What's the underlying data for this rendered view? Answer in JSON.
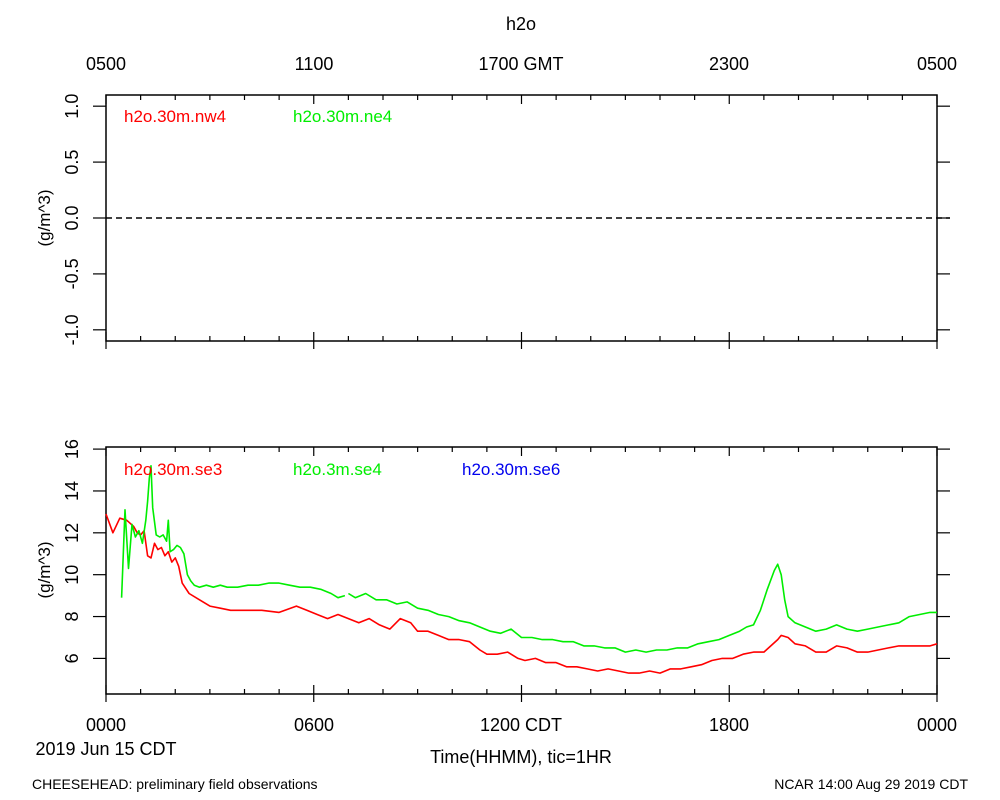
{
  "title": "h2o",
  "top_axis": {
    "ticks": [
      "0500",
      "1100",
      "1700 GMT",
      "2300",
      "0500"
    ]
  },
  "bottom_axis": {
    "ticks": [
      "0000",
      "0600",
      "1200 CDT",
      "1800",
      "0000"
    ],
    "date_label": "2019 Jun 15 CDT",
    "xlabel": "Time(HHMM), tic=1HR"
  },
  "footer": {
    "left": "CHEESEHEAD: preliminary field observations",
    "right": "NCAR 14:00 Aug 29 2019 CDT"
  },
  "colors": {
    "red": "#ff0000",
    "green": "#00ee00",
    "blue": "#0000ee"
  },
  "chart_data": [
    {
      "type": "line",
      "ylabel": "(g/m^3)",
      "xlim": [
        0,
        24
      ],
      "ylim": [
        -1.1,
        1.1
      ],
      "yticks": [
        "1.0",
        "0.5",
        "0.0",
        "-0.5",
        "-1.0"
      ],
      "ytick_values": [
        1.0,
        0.5,
        0.0,
        -0.5,
        -1.0
      ],
      "reference_line": 0,
      "series": [
        {
          "name": "h2o.30m.nw4",
          "color": "#ff0000",
          "points": []
        },
        {
          "name": "h2o.30m.ne4",
          "color": "#00ee00",
          "points": []
        }
      ]
    },
    {
      "type": "line",
      "ylabel": "(g/m^3)",
      "xlim": [
        0,
        24
      ],
      "ylim": [
        4.3,
        16.1
      ],
      "yticks": [
        "16",
        "14",
        "12",
        "10",
        "8",
        "6"
      ],
      "ytick_values": [
        16,
        14,
        12,
        10,
        8,
        6
      ],
      "series": [
        {
          "name": "h2o.30m.se3",
          "color": "#ff0000",
          "points": [
            [
              0.0,
              12.9
            ],
            [
              0.2,
              12.0
            ],
            [
              0.4,
              12.7
            ],
            [
              0.6,
              12.6
            ],
            [
              0.8,
              12.3
            ],
            [
              0.9,
              12.0
            ],
            [
              1.0,
              11.9
            ],
            [
              1.1,
              12.1
            ],
            [
              1.2,
              10.9
            ],
            [
              1.3,
              10.8
            ],
            [
              1.4,
              11.5
            ],
            [
              1.5,
              11.2
            ],
            [
              1.6,
              11.3
            ],
            [
              1.7,
              10.9
            ],
            [
              1.8,
              11.1
            ],
            [
              1.9,
              10.6
            ],
            [
              2.0,
              10.8
            ],
            [
              2.1,
              10.4
            ],
            [
              2.2,
              9.6
            ],
            [
              2.4,
              9.1
            ],
            [
              2.7,
              8.8
            ],
            [
              3.0,
              8.5
            ],
            [
              3.3,
              8.4
            ],
            [
              3.6,
              8.3
            ],
            [
              4.0,
              8.3
            ],
            [
              4.5,
              8.3
            ],
            [
              5.0,
              8.2
            ],
            [
              5.5,
              8.5
            ],
            [
              5.8,
              8.3
            ],
            [
              6.1,
              8.1
            ],
            [
              6.4,
              7.9
            ],
            [
              6.7,
              8.1
            ],
            [
              7.0,
              7.9
            ],
            [
              7.3,
              7.7
            ],
            [
              7.6,
              7.9
            ],
            [
              7.9,
              7.6
            ],
            [
              8.2,
              7.4
            ],
            [
              8.5,
              7.9
            ],
            [
              8.8,
              7.7
            ],
            [
              9.0,
              7.3
            ],
            [
              9.3,
              7.3
            ],
            [
              9.6,
              7.1
            ],
            [
              9.9,
              6.9
            ],
            [
              10.2,
              6.9
            ],
            [
              10.5,
              6.8
            ],
            [
              10.8,
              6.4
            ],
            [
              11.0,
              6.2
            ],
            [
              11.3,
              6.2
            ],
            [
              11.6,
              6.3
            ],
            [
              11.9,
              6.0
            ],
            [
              12.1,
              5.9
            ],
            [
              12.4,
              6.0
            ],
            [
              12.7,
              5.8
            ],
            [
              13.0,
              5.8
            ],
            [
              13.3,
              5.6
            ],
            [
              13.6,
              5.6
            ],
            [
              13.9,
              5.5
            ],
            [
              14.2,
              5.4
            ],
            [
              14.5,
              5.5
            ],
            [
              14.8,
              5.4
            ],
            [
              15.1,
              5.3
            ],
            [
              15.4,
              5.3
            ],
            [
              15.7,
              5.4
            ],
            [
              16.0,
              5.3
            ],
            [
              16.3,
              5.5
            ],
            [
              16.6,
              5.5
            ],
            [
              16.9,
              5.6
            ],
            [
              17.2,
              5.7
            ],
            [
              17.5,
              5.9
            ],
            [
              17.8,
              6.0
            ],
            [
              18.1,
              6.0
            ],
            [
              18.4,
              6.2
            ],
            [
              18.7,
              6.3
            ],
            [
              19.0,
              6.3
            ],
            [
              19.2,
              6.6
            ],
            [
              19.4,
              6.9
            ],
            [
              19.5,
              7.1
            ],
            [
              19.7,
              7.0
            ],
            [
              19.9,
              6.7
            ],
            [
              20.2,
              6.6
            ],
            [
              20.5,
              6.3
            ],
            [
              20.8,
              6.3
            ],
            [
              21.1,
              6.6
            ],
            [
              21.4,
              6.5
            ],
            [
              21.7,
              6.3
            ],
            [
              22.0,
              6.3
            ],
            [
              22.3,
              6.4
            ],
            [
              22.6,
              6.5
            ],
            [
              22.9,
              6.6
            ],
            [
              23.2,
              6.6
            ],
            [
              23.5,
              6.6
            ],
            [
              23.8,
              6.6
            ],
            [
              24.0,
              6.7
            ]
          ]
        },
        {
          "name": "h2o.3m.se4",
          "color": "#00ee00",
          "segments": [
            [
              [
                0.45,
                8.9
              ],
              [
                0.55,
                13.1
              ],
              [
                0.65,
                10.3
              ],
              [
                0.75,
                12.4
              ],
              [
                0.85,
                11.8
              ],
              [
                0.95,
                12.1
              ],
              [
                1.05,
                11.5
              ],
              [
                1.15,
                12.6
              ],
              [
                1.2,
                13.5
              ],
              [
                1.25,
                14.6
              ],
              [
                1.3,
                15.2
              ],
              [
                1.35,
                13.2
              ],
              [
                1.45,
                11.9
              ],
              [
                1.55,
                11.8
              ],
              [
                1.65,
                11.9
              ],
              [
                1.75,
                11.6
              ],
              [
                1.8,
                12.6
              ],
              [
                1.85,
                11.1
              ],
              [
                1.95,
                11.2
              ],
              [
                2.05,
                11.4
              ],
              [
                2.15,
                11.3
              ],
              [
                2.25,
                11.0
              ],
              [
                2.35,
                10.0
              ],
              [
                2.45,
                9.7
              ],
              [
                2.55,
                9.5
              ],
              [
                2.7,
                9.4
              ],
              [
                2.9,
                9.5
              ],
              [
                3.1,
                9.4
              ],
              [
                3.3,
                9.5
              ],
              [
                3.5,
                9.4
              ],
              [
                3.8,
                9.4
              ],
              [
                4.1,
                9.5
              ],
              [
                4.4,
                9.5
              ],
              [
                4.7,
                9.6
              ],
              [
                5.0,
                9.6
              ],
              [
                5.3,
                9.5
              ],
              [
                5.6,
                9.4
              ],
              [
                5.9,
                9.4
              ],
              [
                6.2,
                9.3
              ],
              [
                6.5,
                9.1
              ],
              [
                6.7,
                8.9
              ],
              [
                6.9,
                9.0
              ]
            ],
            [
              [
                7.0,
                9.1
              ],
              [
                7.2,
                8.9
              ],
              [
                7.5,
                9.1
              ],
              [
                7.8,
                8.8
              ],
              [
                8.1,
                8.8
              ],
              [
                8.4,
                8.6
              ],
              [
                8.7,
                8.7
              ],
              [
                9.0,
                8.4
              ],
              [
                9.3,
                8.3
              ],
              [
                9.6,
                8.1
              ],
              [
                9.9,
                8.0
              ],
              [
                10.2,
                7.8
              ],
              [
                10.5,
                7.7
              ],
              [
                10.8,
                7.5
              ],
              [
                11.1,
                7.3
              ],
              [
                11.4,
                7.2
              ],
              [
                11.7,
                7.4
              ],
              [
                12.0,
                7.0
              ],
              [
                12.3,
                7.0
              ],
              [
                12.6,
                6.9
              ],
              [
                12.9,
                6.9
              ],
              [
                13.2,
                6.8
              ],
              [
                13.5,
                6.8
              ],
              [
                13.8,
                6.6
              ],
              [
                14.1,
                6.6
              ],
              [
                14.4,
                6.5
              ],
              [
                14.7,
                6.5
              ],
              [
                15.0,
                6.3
              ],
              [
                15.3,
                6.4
              ],
              [
                15.6,
                6.3
              ],
              [
                15.9,
                6.4
              ],
              [
                16.2,
                6.4
              ],
              [
                16.5,
                6.5
              ],
              [
                16.8,
                6.5
              ],
              [
                17.1,
                6.7
              ],
              [
                17.4,
                6.8
              ],
              [
                17.7,
                6.9
              ],
              [
                18.0,
                7.1
              ],
              [
                18.3,
                7.3
              ],
              [
                18.5,
                7.5
              ],
              [
                18.7,
                7.6
              ],
              [
                18.9,
                8.3
              ],
              [
                19.1,
                9.3
              ],
              [
                19.3,
                10.2
              ],
              [
                19.4,
                10.5
              ],
              [
                19.5,
                10.0
              ],
              [
                19.6,
                8.8
              ],
              [
                19.7,
                8.0
              ],
              [
                19.9,
                7.7
              ],
              [
                20.2,
                7.5
              ],
              [
                20.5,
                7.3
              ],
              [
                20.8,
                7.4
              ],
              [
                21.1,
                7.6
              ],
              [
                21.4,
                7.4
              ],
              [
                21.7,
                7.3
              ],
              [
                22.0,
                7.4
              ],
              [
                22.3,
                7.5
              ],
              [
                22.6,
                7.6
              ],
              [
                22.9,
                7.7
              ],
              [
                23.2,
                8.0
              ],
              [
                23.5,
                8.1
              ],
              [
                23.8,
                8.2
              ],
              [
                24.0,
                8.2
              ]
            ]
          ]
        },
        {
          "name": "h2o.30m.se6",
          "color": "#0000ee",
          "points": []
        }
      ]
    }
  ]
}
